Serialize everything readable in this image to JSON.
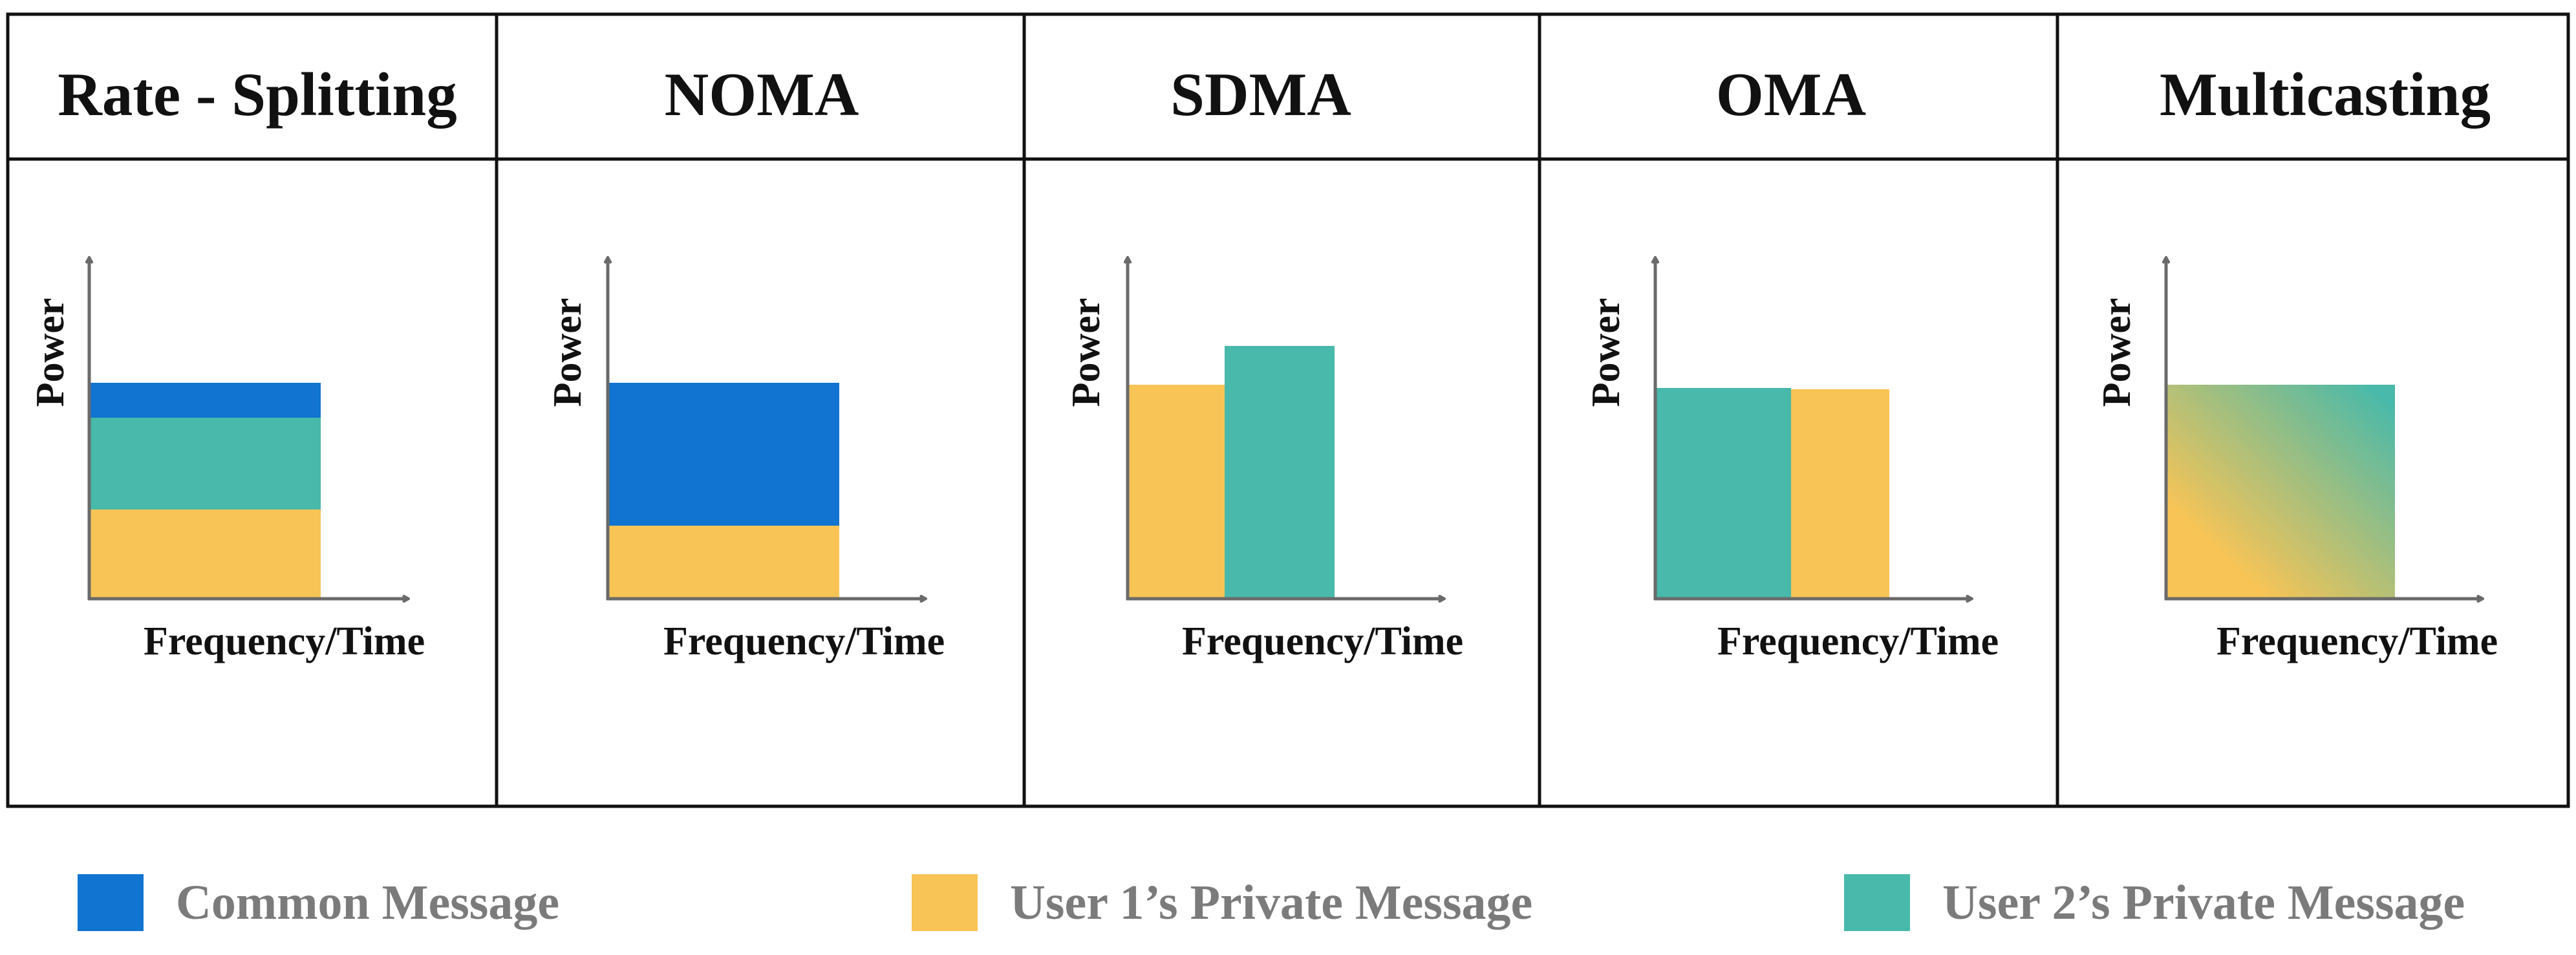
{
  "colors": {
    "common": "#1074d0",
    "user1": "#f8c456",
    "user2": "#48b9aa",
    "frame": "#111111",
    "axis": "#6a6a6a",
    "legend_text": "#7b7b7b"
  },
  "panels": [
    {
      "title": "Rate - Splitting",
      "y_label": "Power",
      "x_label": "Frequency/Time",
      "scheme": "rate-splitting",
      "layers": [
        {
          "message": "user1",
          "share": 0.41
        },
        {
          "message": "user2",
          "share": 0.42
        },
        {
          "message": "common",
          "share": 0.17
        }
      ]
    },
    {
      "title": "NOMA",
      "y_label": "Power",
      "x_label": "Frequency/Time",
      "scheme": "noma",
      "layers": [
        {
          "message": "user1",
          "share": 0.34
        },
        {
          "message": "common",
          "share": 0.66
        }
      ]
    },
    {
      "title": "SDMA",
      "y_label": "Power",
      "x_label": "Frequency/Time",
      "scheme": "sdma",
      "bars": [
        {
          "message": "user1",
          "relative_power": 0.85
        },
        {
          "message": "user2",
          "relative_power": 1.0
        }
      ]
    },
    {
      "title": "OMA",
      "y_label": "Power",
      "x_label": "Frequency/Time",
      "scheme": "oma",
      "bars": [
        {
          "message": "user2",
          "relative_power": 1.0
        },
        {
          "message": "user1",
          "relative_power": 0.99
        }
      ]
    },
    {
      "title": "Multicasting",
      "y_label": "Power",
      "x_label": "Frequency/Time",
      "scheme": "multicasting",
      "gradient": [
        "user1",
        "user2"
      ]
    }
  ],
  "legend": {
    "common": "Common Message",
    "user1": "User 1’s Private Message",
    "user2": "User 2’s Private Message"
  }
}
